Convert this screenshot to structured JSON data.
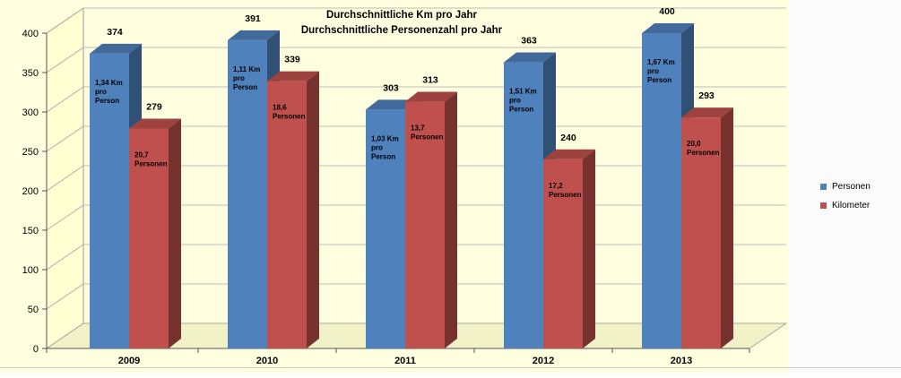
{
  "chart_data": {
    "type": "bar",
    "title_lines": [
      "Durchschnittliche Km pro Jahr",
      "Durchschnittliche Personenzahl pro Jahr"
    ],
    "categories": [
      "2009",
      "2010",
      "2011",
      "2012",
      "2013"
    ],
    "ylim": [
      0,
      400
    ],
    "yticks": [
      0,
      50,
      100,
      150,
      200,
      250,
      300,
      350,
      400
    ],
    "grid": true,
    "legend_position": "right",
    "series": [
      {
        "name": "Personen",
        "color": "#4f81bd",
        "values": [
          374,
          391,
          303,
          363,
          400
        ],
        "annotations": [
          [
            "1,34 Km",
            "pro",
            "Person"
          ],
          [
            "1,11 Km",
            "pro",
            "Person"
          ],
          [
            "1,03 Km",
            "pro",
            "Person"
          ],
          [
            "1,51 Km",
            "pro",
            "Person"
          ],
          [
            "1,67 Km",
            "pro",
            "Person"
          ]
        ]
      },
      {
        "name": "Kilometer",
        "color": "#c0504d",
        "values": [
          279,
          339,
          313,
          240,
          293
        ],
        "annotations": [
          [
            "20,7",
            "Personen"
          ],
          [
            "18,6",
            "Personen"
          ],
          [
            "13,7",
            "Personen"
          ],
          [
            "17,2",
            "Personen"
          ],
          [
            "20,0",
            "Personen"
          ]
        ]
      }
    ]
  }
}
